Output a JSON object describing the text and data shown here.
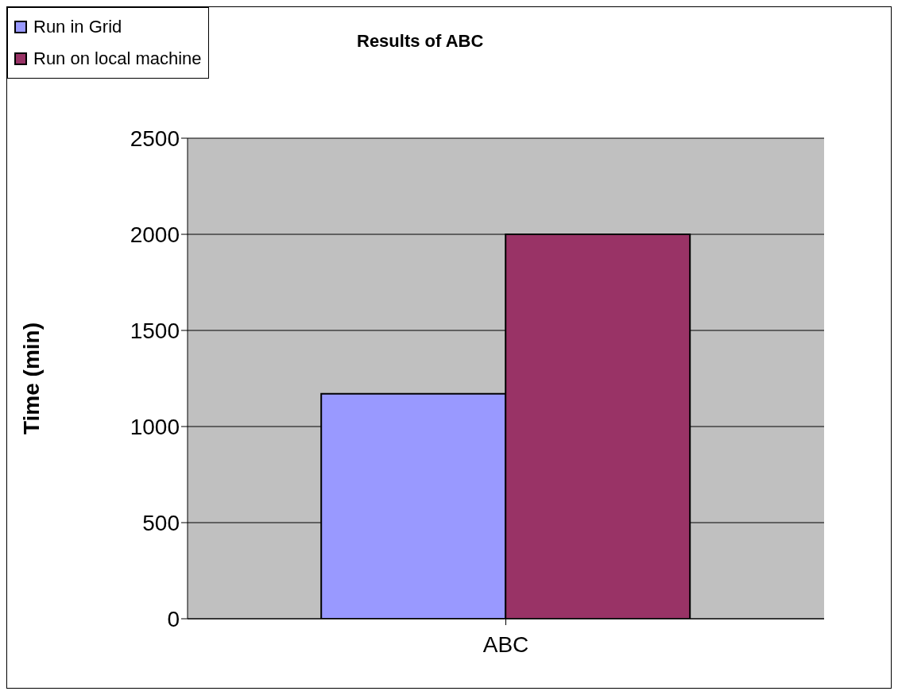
{
  "chart_data": {
    "type": "bar",
    "title": "Results of ABC",
    "ylabel": "Time (min)",
    "categories": [
      "ABC"
    ],
    "series": [
      {
        "name": "Run in Grid",
        "color": "#9999ff",
        "values": [
          1170
        ]
      },
      {
        "name": "Run on local machine",
        "color": "#993366",
        "values": [
          2000
        ]
      }
    ],
    "ylim": [
      0,
      2500
    ],
    "yticks": [
      0,
      500,
      1000,
      1500,
      2000,
      2500
    ],
    "grid": "y",
    "legend": "top left"
  }
}
